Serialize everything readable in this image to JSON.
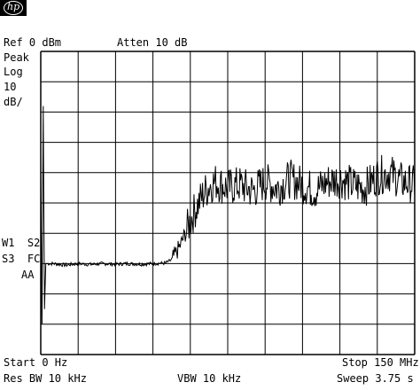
{
  "header": {
    "logo_text": "hp",
    "ref_level": "Ref 0 dBm",
    "attenuation": "Atten 10 dB"
  },
  "left_panel": {
    "detector": "Peak",
    "scale_type": "Log",
    "scale_value": "10",
    "scale_unit": "dB/",
    "trace_w1s2": "W1  S2",
    "trace_s3fc": "S3  FC",
    "trace_aa": "AA"
  },
  "footer": {
    "start": "Start 0 Hz",
    "stop": "Stop 150 MHz",
    "res_bw": "Res BW 10 kHz",
    "vbw": "VBW 10 kHz",
    "sweep": "Sweep 3.75 s"
  },
  "chart_data": {
    "type": "line",
    "x_unit": "MHz",
    "y_unit": "dBm",
    "xlim": [
      0,
      150
    ],
    "ylim": [
      -100,
      0
    ],
    "x_divisions": 10,
    "y_divisions": 10,
    "grid": true,
    "trace_color": "#000000",
    "series": [
      {
        "x": [
          0.0,
          0.5,
          1.0,
          1.5,
          2.0,
          5,
          10,
          15,
          20,
          25,
          30,
          35,
          40,
          45,
          50,
          52,
          54,
          56,
          58,
          60,
          62,
          64,
          66,
          68,
          70,
          75,
          80,
          85,
          90,
          95,
          100,
          105,
          110,
          115,
          120,
          125,
          130,
          135,
          140,
          145,
          150
        ],
        "y": [
          -40,
          -90,
          -18,
          -85,
          -70,
          -70,
          -70.5,
          -70,
          -70.3,
          -70,
          -70.2,
          -70,
          -70.2,
          -70,
          -69.8,
          -69,
          -67,
          -64,
          -60,
          -56,
          -52,
          -49,
          -46,
          -44,
          -43,
          -45,
          -44,
          -46,
          -43,
          -45,
          -42,
          -44,
          -46,
          -43,
          -42,
          -44,
          -45,
          -41,
          -40,
          -43,
          -44
        ]
      }
    ]
  }
}
